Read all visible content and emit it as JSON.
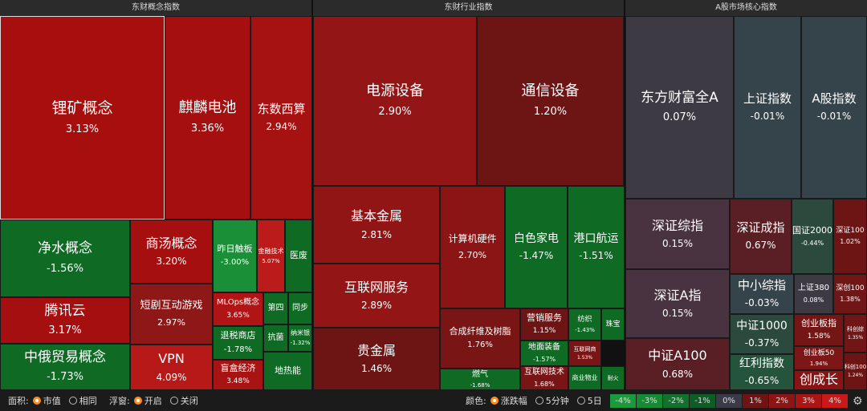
{
  "headers": {
    "concept": "东财概念指数",
    "industry": "东财行业指数",
    "market": "A股市场核心指数"
  },
  "cells": [
    {
      "name": "锂矿概念",
      "value": "3.13%",
      "color": "#a70f0f"
    },
    {
      "name": "麒麟电池",
      "value": "3.36%",
      "color": "#a50f0f"
    },
    {
      "name": "东数西算",
      "value": "2.94%",
      "color": "#a61212"
    },
    {
      "name": "净水概念",
      "value": "-1.56%",
      "color": "#0f6a24"
    },
    {
      "name": "商汤概念",
      "value": "3.20%",
      "color": "#a60f0f"
    },
    {
      "name": "昨日触板",
      "value": "-3.00%",
      "color": "#1a8f37"
    },
    {
      "name": "金融技术",
      "value": "5.07%",
      "color": "#bb1b1b"
    },
    {
      "name": "医废",
      "value": "",
      "color": "#0f6a24"
    },
    {
      "name": "腾讯云",
      "value": "3.17%",
      "color": "#a60f0f"
    },
    {
      "name": "短剧互动游戏",
      "value": "2.97%",
      "color": "#8e1717"
    },
    {
      "name": "MLOps概念",
      "value": "3.65%",
      "color": "#b01414"
    },
    {
      "name": "第四",
      "value": "",
      "color": "#0f6a24"
    },
    {
      "name": "同步",
      "value": "",
      "color": "#0f6a24"
    },
    {
      "name": "退税商店",
      "value": "-1.78%",
      "color": "#0f6a24"
    },
    {
      "name": "抗菌",
      "value": "",
      "color": "#0f6a24"
    },
    {
      "name": "纳米银",
      "value": "-1.32%",
      "color": "#0f6a24"
    },
    {
      "name": "中俄贸易概念",
      "value": "-1.73%",
      "color": "#0f6a24"
    },
    {
      "name": "VPN",
      "value": "4.09%",
      "color": "#b71919"
    },
    {
      "name": "盲盒经济",
      "value": "3.48%",
      "color": "#a81313"
    },
    {
      "name": "地热能",
      "value": "",
      "color": "#0f6a24"
    },
    {
      "name": "电源设备",
      "value": "2.90%",
      "color": "#931515"
    },
    {
      "name": "通信设备",
      "value": "1.20%",
      "color": "#6d1515"
    },
    {
      "name": "基本金属",
      "value": "2.81%",
      "color": "#921515"
    },
    {
      "name": "计算机硬件",
      "value": "2.70%",
      "color": "#8b1414"
    },
    {
      "name": "白色家电",
      "value": "-1.47%",
      "color": "#0f6a24"
    },
    {
      "name": "港口航运",
      "value": "-1.51%",
      "color": "#0f6a24"
    },
    {
      "name": "互联网服务",
      "value": "2.89%",
      "color": "#931515"
    },
    {
      "name": "合成纤维及树脂",
      "value": "1.76%",
      "color": "#7a1515"
    },
    {
      "name": "营销服务",
      "value": "1.15%",
      "color": "#6d1515"
    },
    {
      "name": "纺织",
      "value": "-1.43%",
      "color": "#0f6a24"
    },
    {
      "name": "珠宝",
      "value": "",
      "color": "#0f6a24"
    },
    {
      "name": "地面装备",
      "value": "-1.57%",
      "color": "#0f6a24"
    },
    {
      "name": "互联网商",
      "value": "1.53%",
      "color": "#7a1515"
    },
    {
      "name": "贵金属",
      "value": "1.46%",
      "color": "#6d1515"
    },
    {
      "name": "燃气",
      "value": "-1.68%",
      "color": "#0f6a24"
    },
    {
      "name": "互联网技术",
      "value": "1.68%",
      "color": "#7a1515"
    },
    {
      "name": "商业物业",
      "value": "",
      "color": "#0f6a24"
    },
    {
      "name": "耐火",
      "value": "",
      "color": "#0f6a24"
    },
    {
      "name": "东方财富全A",
      "value": "0.07%",
      "color": "#3d3a44"
    },
    {
      "name": "上证指数",
      "value": "-0.01%",
      "color": "#35434a"
    },
    {
      "name": "A股指数",
      "value": "-0.01%",
      "color": "#35434a"
    },
    {
      "name": "深证综指",
      "value": "0.15%",
      "color": "#4a3340"
    },
    {
      "name": "深证成指",
      "value": "0.67%",
      "color": "#5a1f24"
    },
    {
      "name": "国证2000",
      "value": "-0.44%",
      "color": "#2b4a3d"
    },
    {
      "name": "深证100",
      "value": "1.02%",
      "color": "#6d1515"
    },
    {
      "name": "深证A指",
      "value": "0.15%",
      "color": "#4a3340"
    },
    {
      "name": "中小综指",
      "value": "-0.03%",
      "color": "#35434a"
    },
    {
      "name": "上证380",
      "value": "0.08%",
      "color": "#3d3a44"
    },
    {
      "name": "深创100",
      "value": "1.38%",
      "color": "#701616"
    },
    {
      "name": "中证1000",
      "value": "-0.37%",
      "color": "#2b4a3d"
    },
    {
      "name": "创业板指",
      "value": "1.58%",
      "color": "#751616"
    },
    {
      "name": "科创综",
      "value": "1.35%",
      "color": "#701616"
    },
    {
      "name": "中证A100",
      "value": "0.68%",
      "color": "#5a1f24"
    },
    {
      "name": "红利指数",
      "value": "-0.65%",
      "color": "#25543c"
    },
    {
      "name": "创业板50",
      "value": "1.94%",
      "color": "#7d1616"
    },
    {
      "name": "创成长",
      "value": "",
      "color": "#8a1414"
    },
    {
      "name": "科创100",
      "value": "1.24%",
      "color": "#6d1515"
    }
  ],
  "footer": {
    "area_label": "面积:",
    "area_options": [
      "市值",
      "相同"
    ],
    "float_label": "浮窗:",
    "float_options": [
      "开启",
      "关闭"
    ],
    "color_label": "颜色:",
    "color_options": [
      "涨跌幅",
      "5分钟",
      "5日"
    ],
    "scale": [
      {
        "label": "-4%",
        "color": "#1b9a3d"
      },
      {
        "label": "-3%",
        "color": "#168a35"
      },
      {
        "label": "-2%",
        "color": "#12722d"
      },
      {
        "label": "-1%",
        "color": "#0f5c27"
      },
      {
        "label": "0%",
        "color": "#3a3a48"
      },
      {
        "label": "1%",
        "color": "#6d1515"
      },
      {
        "label": "2%",
        "color": "#8e1515"
      },
      {
        "label": "3%",
        "color": "#ad1515"
      },
      {
        "label": "4%",
        "color": "#c81a1a"
      }
    ]
  }
}
